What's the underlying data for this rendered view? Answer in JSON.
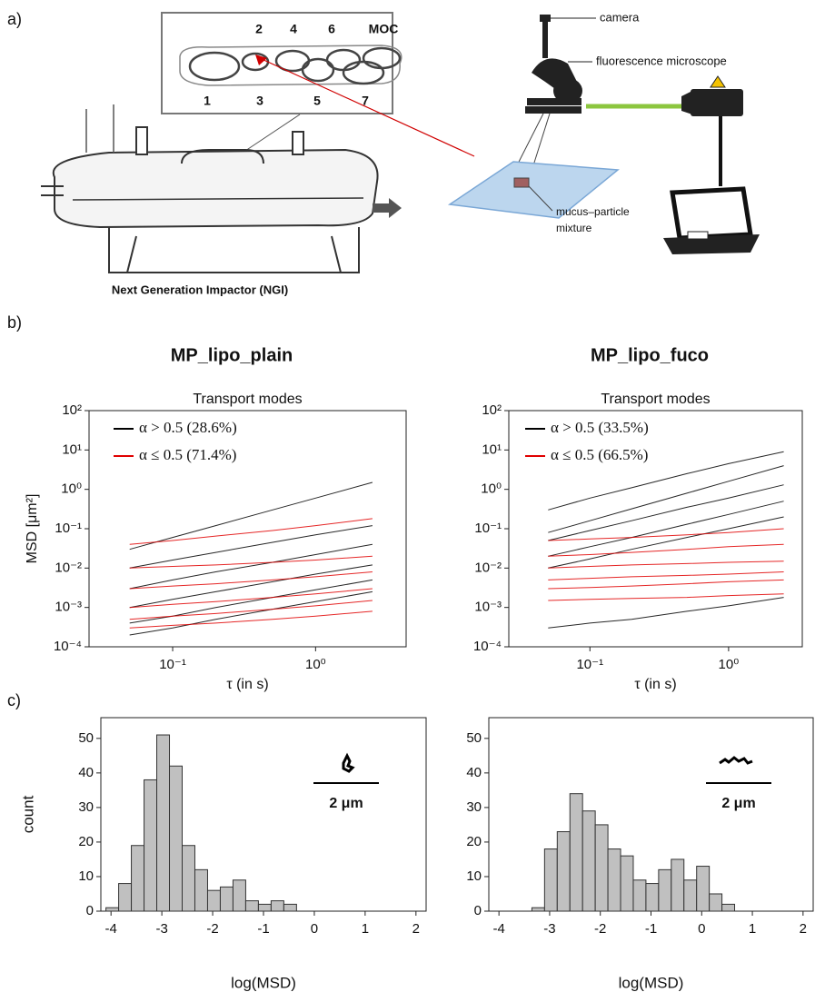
{
  "panel_labels": [
    "a)",
    "b)",
    "c)"
  ],
  "diagram": {
    "stage_labels": [
      "2",
      "4",
      "6",
      "MOC",
      "1",
      "3",
      "5",
      "7"
    ],
    "camera": "camera",
    "microscope": "fluorescence microscope",
    "mixture": [
      "mucus–particle",
      "mixture"
    ],
    "ngi": "Next Generation Impactor (NGI)"
  },
  "panel_titles": [
    "MP_lipo_plain",
    "MP_lipo_fuco"
  ],
  "chart_data": [
    {
      "type": "line",
      "title": "Transport modes",
      "xlabel": "τ (in s)",
      "ylabel": "MSD [μm²]",
      "log_x": true,
      "log_y": true,
      "xlim": [
        0.026,
        4.3
      ],
      "ylim": [
        0.0001,
        100
      ],
      "xticks": [
        {
          "value": 0.1,
          "label": "10⁻¹"
        },
        {
          "value": 1,
          "label": "10⁰"
        }
      ],
      "yticks": [
        {
          "value": 0.0001,
          "label": "10⁻⁴"
        },
        {
          "value": 0.001,
          "label": "10⁻³"
        },
        {
          "value": 0.01,
          "label": "10⁻²"
        },
        {
          "value": 0.1,
          "label": "10⁻¹"
        },
        {
          "value": 1,
          "label": "10⁰"
        },
        {
          "value": 10,
          "label": "10¹"
        },
        {
          "value": 100,
          "label": "10²"
        }
      ],
      "x": [
        0.05,
        0.1,
        0.2,
        0.5,
        1,
        2.5
      ],
      "series": [
        {
          "name": "α > 0.5 (28.6%)",
          "color": "#000000",
          "lines": [
            [
              0.03,
              0.06,
              0.12,
              0.3,
              0.6,
              1.5
            ],
            [
              0.01,
              0.016,
              0.025,
              0.045,
              0.07,
              0.12
            ],
            [
              0.003,
              0.005,
              0.008,
              0.014,
              0.022,
              0.04
            ],
            [
              0.001,
              0.0016,
              0.0025,
              0.0045,
              0.007,
              0.012
            ],
            [
              0.0004,
              0.0006,
              0.001,
              0.0018,
              0.0028,
              0.005
            ],
            [
              0.0002,
              0.0003,
              0.0005,
              0.0009,
              0.0014,
              0.0025
            ]
          ]
        },
        {
          "name": "α ≤ 0.5 (71.4%)",
          "color": "#e00000",
          "lines": [
            [
              0.04,
              0.05,
              0.065,
              0.09,
              0.12,
              0.18
            ],
            [
              0.01,
              0.011,
              0.012,
              0.014,
              0.016,
              0.02
            ],
            [
              0.003,
              0.0035,
              0.004,
              0.005,
              0.006,
              0.008
            ],
            [
              0.001,
              0.0012,
              0.0014,
              0.0018,
              0.0022,
              0.003
            ],
            [
              0.0005,
              0.0006,
              0.0007,
              0.0009,
              0.0011,
              0.0015
            ],
            [
              0.0003,
              0.00035,
              0.0004,
              0.0005,
              0.0006,
              0.0008
            ]
          ]
        }
      ]
    },
    {
      "type": "line",
      "title": "Transport modes",
      "xlabel": "τ (in s)",
      "log_x": true,
      "log_y": true,
      "xlim": [
        0.026,
        3.4
      ],
      "ylim": [
        0.0001,
        100
      ],
      "xticks": [
        {
          "value": 0.1,
          "label": "10⁻¹"
        },
        {
          "value": 1,
          "label": "10⁰"
        }
      ],
      "yticks": [
        {
          "value": 0.0001,
          "label": "10⁻⁴"
        },
        {
          "value": 0.001,
          "label": "10⁻³"
        },
        {
          "value": 0.01,
          "label": "10⁻²"
        },
        {
          "value": 0.1,
          "label": "10⁻¹"
        },
        {
          "value": 1,
          "label": "10⁰"
        },
        {
          "value": 10,
          "label": "10¹"
        },
        {
          "value": 100,
          "label": "10²"
        }
      ],
      "x": [
        0.05,
        0.1,
        0.2,
        0.5,
        1,
        2.5
      ],
      "series": [
        {
          "name": "α > 0.5 (33.5%)",
          "color": "#000000",
          "lines": [
            [
              0.3,
              0.6,
              1.1,
              2.5,
              4.5,
              9
            ],
            [
              0.08,
              0.16,
              0.32,
              0.8,
              1.6,
              4
            ],
            [
              0.05,
              0.09,
              0.16,
              0.35,
              0.6,
              1.3
            ],
            [
              0.02,
              0.035,
              0.06,
              0.13,
              0.23,
              0.5
            ],
            [
              0.01,
              0.017,
              0.03,
              0.06,
              0.1,
              0.2
            ],
            [
              0.0003,
              0.0004,
              0.0005,
              0.0008,
              0.0011,
              0.0018
            ]
          ]
        },
        {
          "name": "α ≤ 0.5 (66.5%)",
          "color": "#e00000",
          "lines": [
            [
              0.05,
              0.055,
              0.06,
              0.07,
              0.08,
              0.1
            ],
            [
              0.02,
              0.022,
              0.025,
              0.03,
              0.035,
              0.04
            ],
            [
              0.01,
              0.011,
              0.012,
              0.013,
              0.014,
              0.015
            ],
            [
              0.005,
              0.0055,
              0.006,
              0.0065,
              0.007,
              0.008
            ],
            [
              0.003,
              0.0032,
              0.0035,
              0.004,
              0.0045,
              0.005
            ],
            [
              0.0015,
              0.0016,
              0.0017,
              0.0018,
              0.002,
              0.0022
            ]
          ]
        }
      ]
    },
    {
      "type": "histogram",
      "xlabel": "log(MSD)",
      "ylabel": "count",
      "annotation": "2 μm",
      "color": "#c0c0c0",
      "xlim": [
        -4.2,
        2.2
      ],
      "ylim": [
        0,
        56
      ],
      "xticks": [
        -4,
        -3,
        -2,
        -1,
        0,
        1,
        2
      ],
      "yticks": [
        0,
        10,
        20,
        30,
        40,
        50
      ],
      "bins": [
        -4.1,
        -3.85,
        -3.6,
        -3.35,
        -3.1,
        -2.85,
        -2.6,
        -2.35,
        -2.1,
        -1.85,
        -1.6,
        -1.35,
        -1.1,
        -0.85,
        -0.6,
        -0.35
      ],
      "counts": [
        1,
        8,
        19,
        38,
        51,
        42,
        19,
        12,
        6,
        7,
        9,
        3,
        2,
        3,
        2
      ]
    },
    {
      "type": "histogram",
      "xlabel": "log(MSD)",
      "annotation": "2 μm",
      "color": "#c0c0c0",
      "xlim": [
        -4.2,
        2.2
      ],
      "ylim": [
        0,
        56
      ],
      "xticks": [
        -4,
        -3,
        -2,
        -1,
        0,
        1,
        2
      ],
      "yticks": [
        0,
        10,
        20,
        30,
        40,
        50
      ],
      "bins": [
        -3.35,
        -3.1,
        -2.85,
        -2.6,
        -2.35,
        -2.1,
        -1.85,
        -1.6,
        -1.35,
        -1.1,
        -0.85,
        -0.6,
        -0.35,
        -0.1,
        0.15,
        0.4,
        0.65
      ],
      "counts": [
        1,
        18,
        23,
        34,
        29,
        25,
        18,
        16,
        9,
        8,
        12,
        15,
        9,
        13,
        5,
        2
      ]
    }
  ]
}
